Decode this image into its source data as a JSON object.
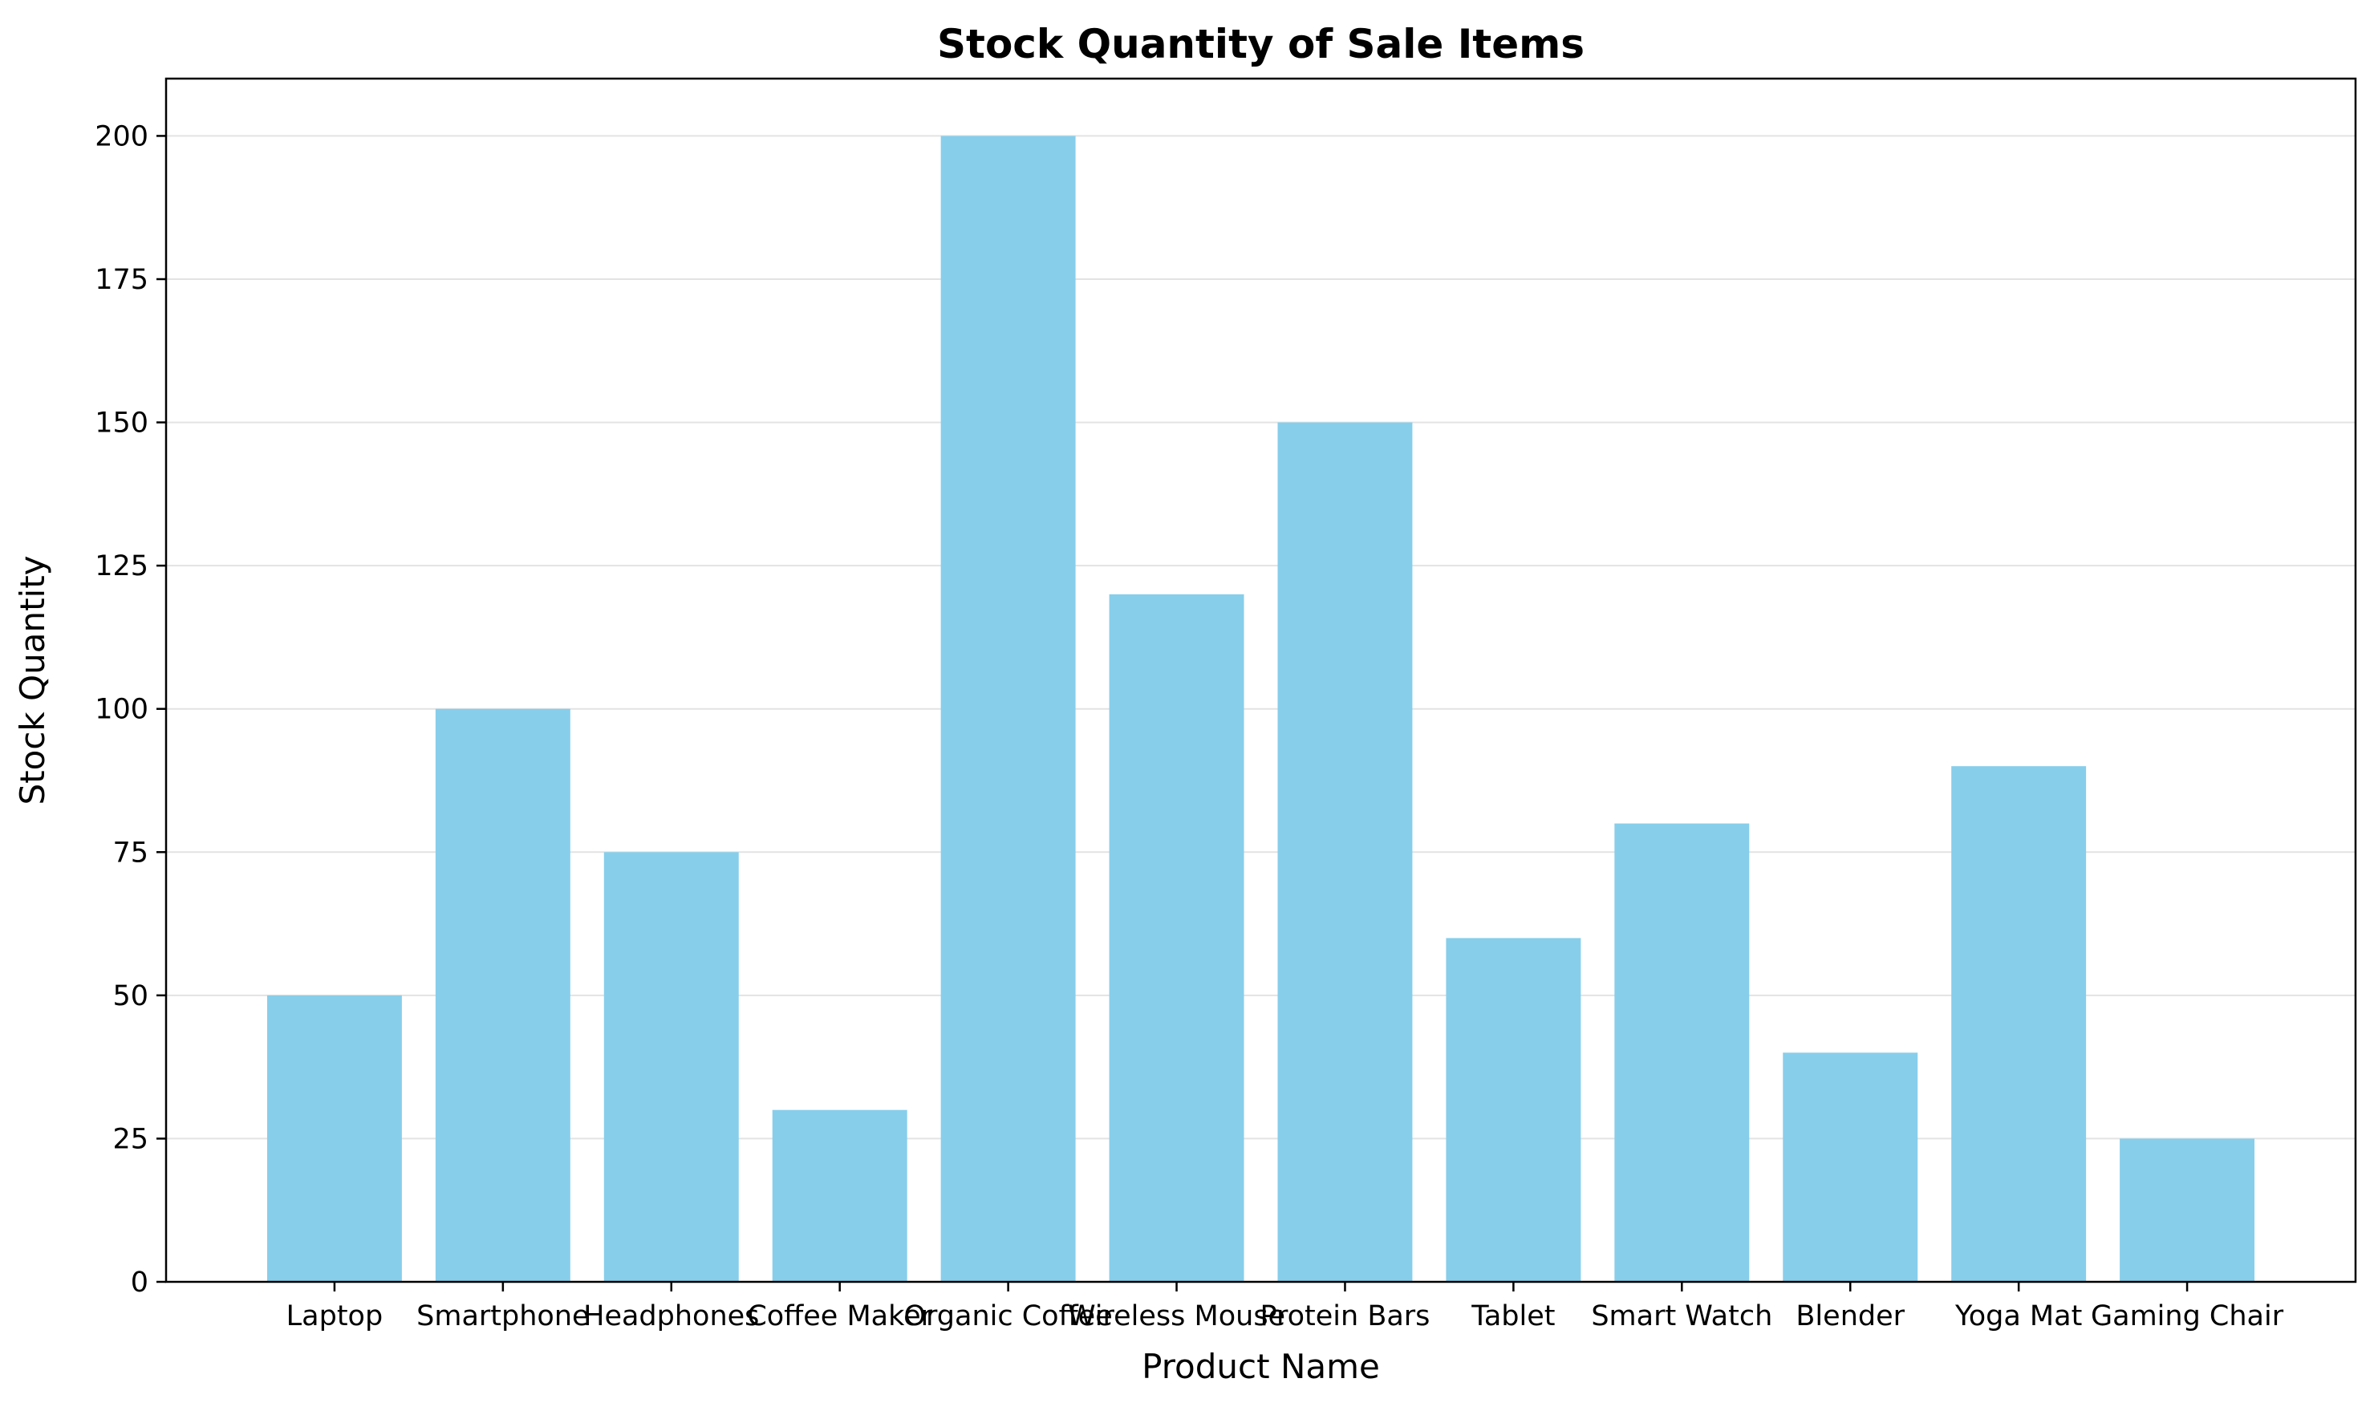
{
  "chart_data": {
    "type": "bar",
    "title": "Stock Quantity of Sale Items",
    "xlabel": "Product Name",
    "ylabel": "Stock Quantity",
    "categories": [
      "Laptop",
      "Smartphone",
      "Headphones",
      "Coffee Maker",
      "Organic Coffee",
      "Wireless Mouse",
      "Protein Bars",
      "Tablet",
      "Smart Watch",
      "Blender",
      "Yoga Mat",
      "Gaming Chair"
    ],
    "values": [
      50,
      100,
      75,
      30,
      200,
      120,
      150,
      60,
      80,
      40,
      90,
      25
    ],
    "ylim": [
      0,
      210
    ],
    "yticks": [
      0,
      25,
      50,
      75,
      100,
      125,
      150,
      175,
      200
    ],
    "grid": "y",
    "bar_color": "#87CEEB",
    "grid_color": "#e3e3e3",
    "axis_color": "#000000"
  }
}
